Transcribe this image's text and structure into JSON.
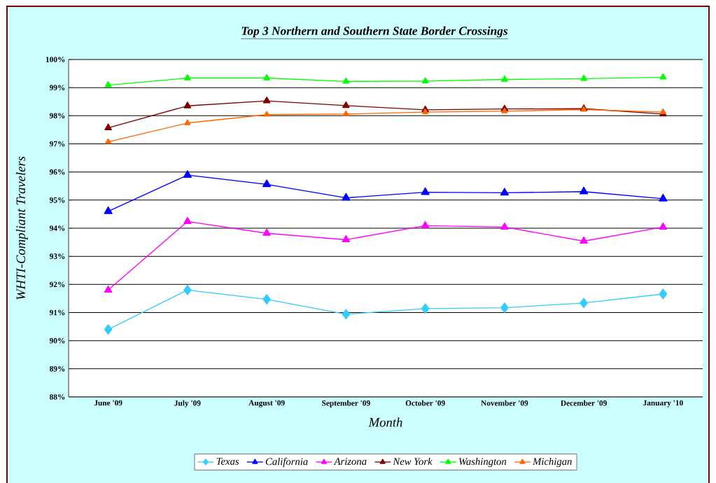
{
  "chart_data": {
    "type": "line",
    "title": "Top 3 Northern and Southern State Border Crossings",
    "xlabel": "Month",
    "ylabel": "WHTI-Compliant Travelers",
    "categories": [
      "June '09",
      "July '09",
      "August '09",
      "September '09",
      "October '09",
      "November '09",
      "December '09",
      "January '10"
    ],
    "series": [
      {
        "name": "Texas",
        "color": "#33ccff",
        "marker": "diamond",
        "values": [
          90.4,
          91.8,
          91.47,
          90.94,
          91.14,
          91.17,
          91.34,
          91.66
        ]
      },
      {
        "name": "California",
        "color": "#0000ff",
        "marker": "triangle",
        "values": [
          94.6,
          95.89,
          95.56,
          95.08,
          95.28,
          95.26,
          95.3,
          95.05
        ]
      },
      {
        "name": "Arizona",
        "color": "#ff00ff",
        "marker": "triangle",
        "values": [
          91.8,
          94.24,
          93.82,
          93.59,
          94.09,
          94.04,
          93.54,
          94.04
        ]
      },
      {
        "name": "New York",
        "color": "#800000",
        "marker": "triangle",
        "values": [
          97.57,
          98.35,
          98.53,
          98.36,
          98.21,
          98.24,
          98.25,
          98.06
        ]
      },
      {
        "name": "Washington",
        "color": "#00ff00",
        "marker": "triangle",
        "values": [
          99.09,
          99.34,
          99.34,
          99.22,
          99.23,
          99.29,
          99.32,
          99.37
        ]
      },
      {
        "name": "Michigan",
        "color": "#ff6600",
        "marker": "triangle",
        "values": [
          97.07,
          97.74,
          98.04,
          98.06,
          98.13,
          98.16,
          98.22,
          98.13
        ]
      }
    ],
    "ylim": [
      88,
      100
    ],
    "yticks": [
      {
        "value": 88,
        "label": "88%"
      },
      {
        "value": 89,
        "label": "89%"
      },
      {
        "value": 90,
        "label": "90%"
      },
      {
        "value": 91,
        "label": "91%"
      },
      {
        "value": 92,
        "label": "92%"
      },
      {
        "value": 93,
        "label": "93%"
      },
      {
        "value": 94,
        "label": "94%"
      },
      {
        "value": 95,
        "label": "95%"
      },
      {
        "value": 96,
        "label": "96%"
      },
      {
        "value": 97,
        "label": "97%"
      },
      {
        "value": 98,
        "label": "98%"
      },
      {
        "value": 99,
        "label": "99%"
      },
      {
        "value": 100,
        "label": "100%"
      }
    ],
    "grid": "y",
    "legend": "bottom",
    "line_style": "solid"
  }
}
